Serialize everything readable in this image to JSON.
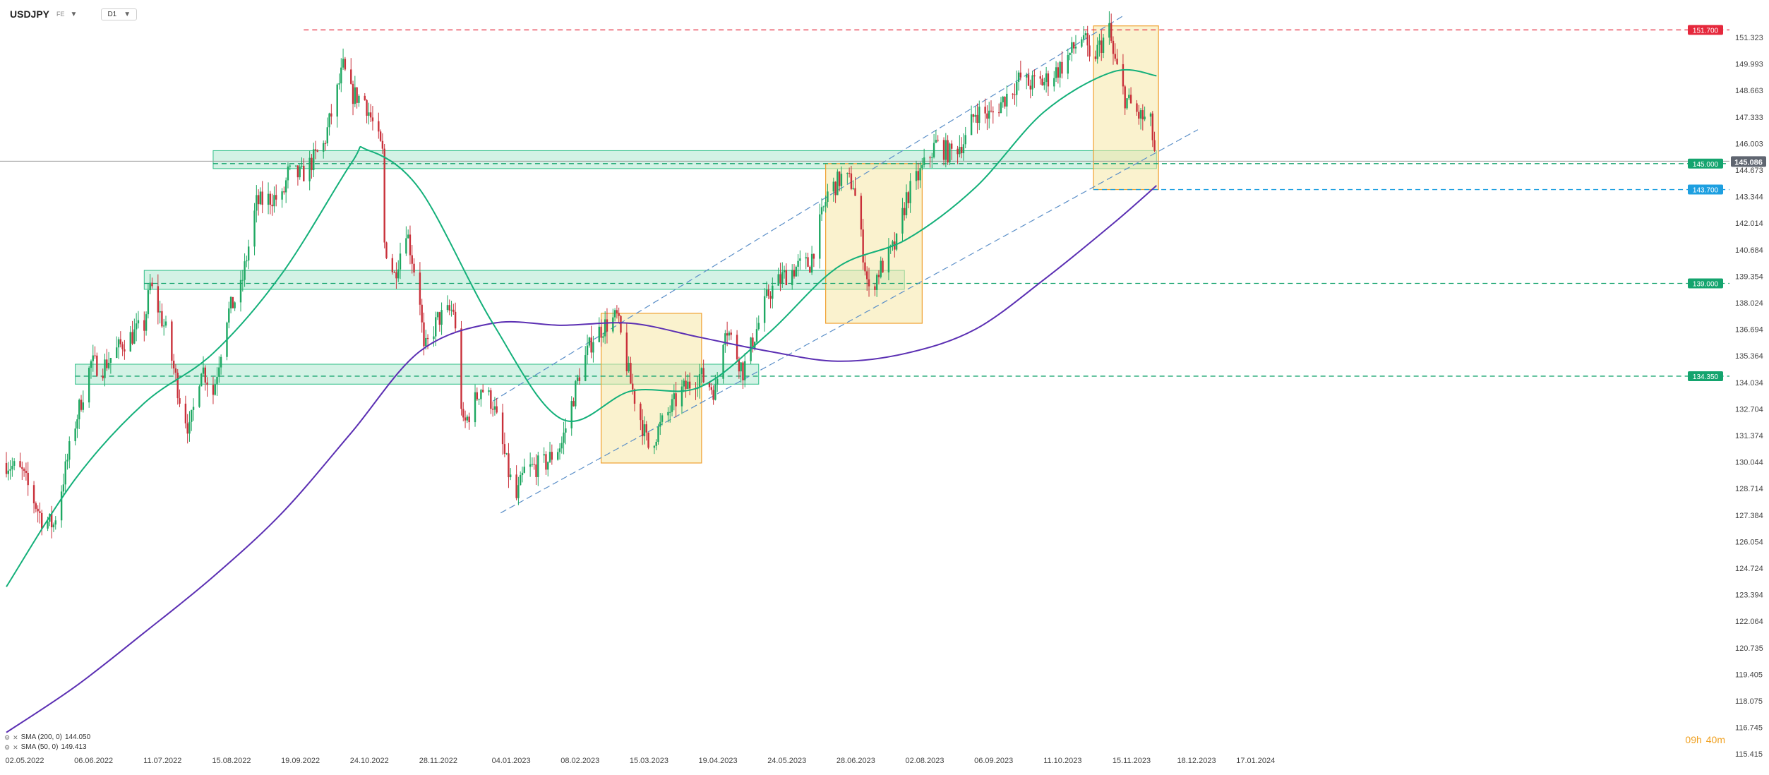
{
  "header": {
    "symbol": "USDJPY",
    "feed": "FE",
    "timeframe": "D1",
    "caret": "▼"
  },
  "indicators": [
    {
      "label": "SMA (200, 0)",
      "value": "144.050",
      "color": "#5b2fb3"
    },
    {
      "label": "SMA (50, 0)",
      "value": "149.413",
      "color": "#14b07a"
    }
  ],
  "countdown": {
    "hours": "09h",
    "minutes": "40m"
  },
  "price_axis": {
    "ticks": [
      "151.323",
      "149.993",
      "148.663",
      "147.333",
      "146.003",
      "144.673",
      "143.344",
      "142.014",
      "140.684",
      "139.354",
      "138.024",
      "136.694",
      "135.364",
      "134.034",
      "132.704",
      "131.374",
      "130.044",
      "128.714",
      "127.384",
      "126.054",
      "124.724",
      "123.394",
      "122.064",
      "120.735",
      "119.405",
      "118.075",
      "116.745",
      "115.415"
    ],
    "current_price": "145.086"
  },
  "level_labels": [
    {
      "value": "151.700",
      "price": 151.7,
      "color": "#e5283c"
    },
    {
      "value": "145.000",
      "price": 145.0,
      "color": "#14a46e"
    },
    {
      "value": "143.700",
      "price": 143.7,
      "color": "#1d9fe0"
    },
    {
      "value": "139.000",
      "price": 139.0,
      "color": "#14a46e"
    },
    {
      "value": "134.350",
      "price": 134.35,
      "color": "#14a46e"
    }
  ],
  "time_axis": [
    "02.05.2022",
    "06.06.2022",
    "11.07.2022",
    "15.08.2022",
    "19.09.2022",
    "24.10.2022",
    "28.11.2022",
    "04.01.2023",
    "08.02.2023",
    "15.03.2023",
    "19.04.2023",
    "24.05.2023",
    "28.06.2023",
    "02.08.2023",
    "06.09.2023",
    "11.10.2023",
    "15.11.2023",
    "18.12.2023",
    "17.01.2024"
  ],
  "chart_data": {
    "type": "candlestick",
    "symbol": "USDJPY",
    "timeframe": "D1",
    "ylim": [
      115.415,
      152.4
    ],
    "path": [
      [
        "02.05.2022",
        130.0
      ],
      [
        "10.05.2022",
        129.5
      ],
      [
        "20.05.2022",
        127.2
      ],
      [
        "26.05.2022",
        126.9
      ],
      [
        "06.06.2022",
        132.0
      ],
      [
        "14.06.2022",
        135.0
      ],
      [
        "20.06.2022",
        134.8
      ],
      [
        "30.06.2022",
        136.0
      ],
      [
        "11.07.2022",
        136.9
      ],
      [
        "14.07.2022",
        138.9
      ],
      [
        "22.07.2022",
        136.6
      ],
      [
        "29.07.2022",
        133.3
      ],
      [
        "03.08.2022",
        131.6
      ],
      [
        "09.08.2022",
        134.9
      ],
      [
        "15.08.2022",
        133.5
      ],
      [
        "22.08.2022",
        137.4
      ],
      [
        "29.08.2022",
        138.7
      ],
      [
        "06.09.2022",
        143.0
      ],
      [
        "14.09.2022",
        143.3
      ],
      [
        "19.09.2022",
        143.2
      ],
      [
        "22.09.2022",
        144.5
      ],
      [
        "29.09.2022",
        144.4
      ],
      [
        "10.10.2022",
        145.9
      ],
      [
        "20.10.2022",
        149.8
      ],
      [
        "24.10.2022",
        148.5
      ],
      [
        "31.10.2022",
        148.2
      ],
      [
        "09.11.2022",
        145.5
      ],
      [
        "10.11.2022",
        141.0
      ],
      [
        "15.11.2022",
        139.4
      ],
      [
        "21.11.2022",
        141.8
      ],
      [
        "28.11.2022",
        138.2
      ],
      [
        "30.11.2022",
        135.5
      ],
      [
        "07.12.2022",
        137.2
      ],
      [
        "15.12.2022",
        137.7
      ],
      [
        "20.12.2022",
        131.8
      ],
      [
        "29.12.2022",
        133.8
      ],
      [
        "04.01.2023",
        133.0
      ],
      [
        "12.01.2023",
        129.5
      ],
      [
        "16.01.2023",
        128.2
      ],
      [
        "20.01.2023",
        129.6
      ],
      [
        "31.01.2023",
        130.0
      ],
      [
        "08.02.2023",
        131.0
      ],
      [
        "17.02.2023",
        134.5
      ],
      [
        "24.02.2023",
        136.3
      ],
      [
        "02.03.2023",
        136.9
      ],
      [
        "08.03.2023",
        137.3
      ],
      [
        "15.03.2023",
        134.0
      ],
      [
        "24.03.2023",
        130.8
      ],
      [
        "03.04.2023",
        132.5
      ],
      [
        "10.04.2023",
        133.6
      ],
      [
        "19.04.2023",
        134.4
      ],
      [
        "27.04.2023",
        133.6
      ],
      [
        "02.05.2023",
        137.0
      ],
      [
        "11.05.2023",
        134.6
      ],
      [
        "24.05.2023",
        138.5
      ],
      [
        "31.05.2023",
        139.3
      ],
      [
        "07.06.2023",
        139.8
      ],
      [
        "14.06.2023",
        140.0
      ],
      [
        "23.06.2023",
        143.5
      ],
      [
        "30.06.2023",
        144.3
      ],
      [
        "06.07.2023",
        144.0
      ],
      [
        "14.07.2023",
        138.5
      ],
      [
        "19.07.2023",
        139.6
      ],
      [
        "28.07.2023",
        141.0
      ],
      [
        "02.08.2023",
        143.3
      ],
      [
        "10.08.2023",
        144.7
      ],
      [
        "17.08.2023",
        146.0
      ],
      [
        "24.08.2023",
        145.5
      ],
      [
        "01.09.2023",
        146.2
      ],
      [
        "06.09.2023",
        147.6
      ],
      [
        "14.09.2023",
        147.4
      ],
      [
        "21.09.2023",
        148.3
      ],
      [
        "29.09.2023",
        149.3
      ],
      [
        "03.10.2023",
        149.0
      ],
      [
        "11.10.2023",
        149.1
      ],
      [
        "20.10.2023",
        149.9
      ],
      [
        "31.10.2023",
        151.5
      ],
      [
        "03.11.2023",
        150.0
      ],
      [
        "13.11.2023",
        151.7
      ],
      [
        "15.11.2023",
        150.4
      ],
      [
        "21.11.2023",
        148.3
      ],
      [
        "28.11.2023",
        147.4
      ],
      [
        "04.12.2023",
        147.0
      ],
      [
        "07.12.2023",
        144.9
      ]
    ],
    "sma50_path": [
      [
        "02.05.2022",
        123.8
      ],
      [
        "06.06.2022",
        129.2
      ],
      [
        "11.07.2022",
        133.0
      ],
      [
        "15.08.2022",
        135.5
      ],
      [
        "19.09.2022",
        139.5
      ],
      [
        "24.10.2022",
        145.0
      ],
      [
        "01.11.2022",
        145.7
      ],
      [
        "28.11.2022",
        143.7
      ],
      [
        "04.01.2023",
        137.0
      ],
      [
        "08.02.2023",
        132.2
      ],
      [
        "15.03.2023",
        133.6
      ],
      [
        "19.04.2023",
        133.8
      ],
      [
        "24.05.2023",
        136.5
      ],
      [
        "28.06.2023",
        139.8
      ],
      [
        "02.08.2023",
        141.2
      ],
      [
        "06.09.2023",
        143.8
      ],
      [
        "11.10.2023",
        147.6
      ],
      [
        "15.11.2023",
        149.6
      ],
      [
        "07.12.2023",
        149.4
      ]
    ],
    "sma200_path": [
      [
        "02.05.2022",
        116.5
      ],
      [
        "06.06.2022",
        118.8
      ],
      [
        "11.07.2022",
        121.5
      ],
      [
        "15.08.2022",
        124.3
      ],
      [
        "19.09.2022",
        127.5
      ],
      [
        "24.10.2022",
        131.5
      ],
      [
        "28.11.2022",
        135.6
      ],
      [
        "04.01.2023",
        137.0
      ],
      [
        "08.02.2023",
        136.9
      ],
      [
        "15.03.2023",
        137.0
      ],
      [
        "19.04.2023",
        136.3
      ],
      [
        "24.05.2023",
        135.6
      ],
      [
        "28.06.2023",
        135.1
      ],
      [
        "02.08.2023",
        135.5
      ],
      [
        "06.09.2023",
        136.7
      ],
      [
        "11.10.2023",
        139.2
      ],
      [
        "15.11.2023",
        142.0
      ],
      [
        "07.12.2023",
        143.9
      ]
    ],
    "horizontal_levels": [
      151.7,
      145.0,
      143.7,
      139.0,
      134.35
    ],
    "zones": [
      {
        "from": "15.08.2022",
        "to": "07.12.2023",
        "low": 144.75,
        "high": 145.65
      },
      {
        "from": "11.07.2022",
        "to": "01.08.2023",
        "low": 138.7,
        "high": 139.65
      },
      {
        "from": "06.06.2022",
        "to": "19.05.2023",
        "low": 133.95,
        "high": 134.95
      }
    ],
    "highlight_boxes": [
      {
        "from": "28.02.2023",
        "to": "20.04.2023",
        "low": 130.0,
        "high": 137.5
      },
      {
        "from": "22.06.2023",
        "to": "10.08.2023",
        "low": 137.0,
        "high": 145.0
      },
      {
        "from": "05.11.2023",
        "to": "08.12.2023",
        "low": 143.7,
        "high": 151.9
      }
    ],
    "channel_upper": [
      [
        "04.01.2023",
        133.1
      ],
      [
        "20.11.2023",
        152.4
      ]
    ],
    "channel_lower": [
      [
        "08.01.2023",
        127.5
      ],
      [
        "28.12.2023",
        146.7
      ]
    ],
    "current_price": 145.086
  }
}
